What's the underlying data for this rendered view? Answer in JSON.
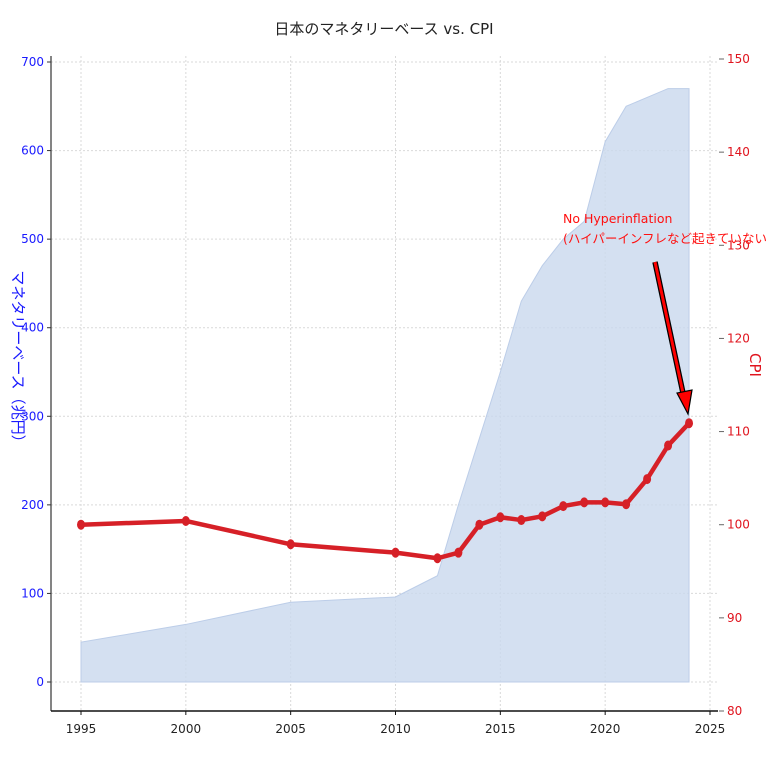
{
  "chart_data": {
    "type": "area+line",
    "title": "日本のマネタリーベース vs. CPI",
    "xlabel": "",
    "x_ticks": [
      1995,
      2000,
      2005,
      2010,
      2015,
      2020,
      2025
    ],
    "xlim": [
      1994,
      2025.5
    ],
    "left_axis": {
      "label": "マネタリーベース（兆円）",
      "ticks": [
        0,
        100,
        200,
        300,
        400,
        500,
        600,
        700
      ],
      "ylim": [
        -32,
        715
      ],
      "color": "#1a1aff"
    },
    "right_axis": {
      "label": "CPI",
      "ticks": [
        80,
        90,
        100,
        110,
        120,
        130,
        140,
        150
      ],
      "ylim": [
        80,
        150
      ],
      "color": "#e0141e"
    },
    "series": [
      {
        "name": "マネタリーベース",
        "type": "area",
        "axis": "left",
        "color": "#c9d8ee",
        "x": [
          1995,
          2000,
          2005,
          2010,
          2012,
          2013,
          2014,
          2015,
          2016,
          2017,
          2018,
          2019,
          2020,
          2021,
          2022,
          2023,
          2024
        ],
        "values": [
          45,
          65,
          90,
          96,
          120,
          200,
          275,
          350,
          430,
          470,
          500,
          520,
          610,
          650,
          660,
          670,
          670
        ]
      },
      {
        "name": "CPI",
        "type": "line",
        "axis": "right",
        "color": "#d62027",
        "x": [
          1995,
          2000,
          2005,
          2010,
          2012,
          2013,
          2014,
          2015,
          2016,
          2017,
          2018,
          2019,
          2020,
          2021,
          2022,
          2023,
          2024
        ],
        "values": [
          100.0,
          100.4,
          97.9,
          97.0,
          96.4,
          97.0,
          100.0,
          100.8,
          100.5,
          100.9,
          102.0,
          102.4,
          102.4,
          102.2,
          104.9,
          108.5,
          110.9
        ]
      }
    ],
    "annotations": [
      {
        "text_line1": "No Hyperinflation",
        "text_line2": "(ハイパーインフレなど起きていない)",
        "arrow_target": {
          "x": 2024,
          "y": 110.9
        },
        "color": "#ff1010"
      }
    ],
    "grid": true,
    "legend": null
  }
}
